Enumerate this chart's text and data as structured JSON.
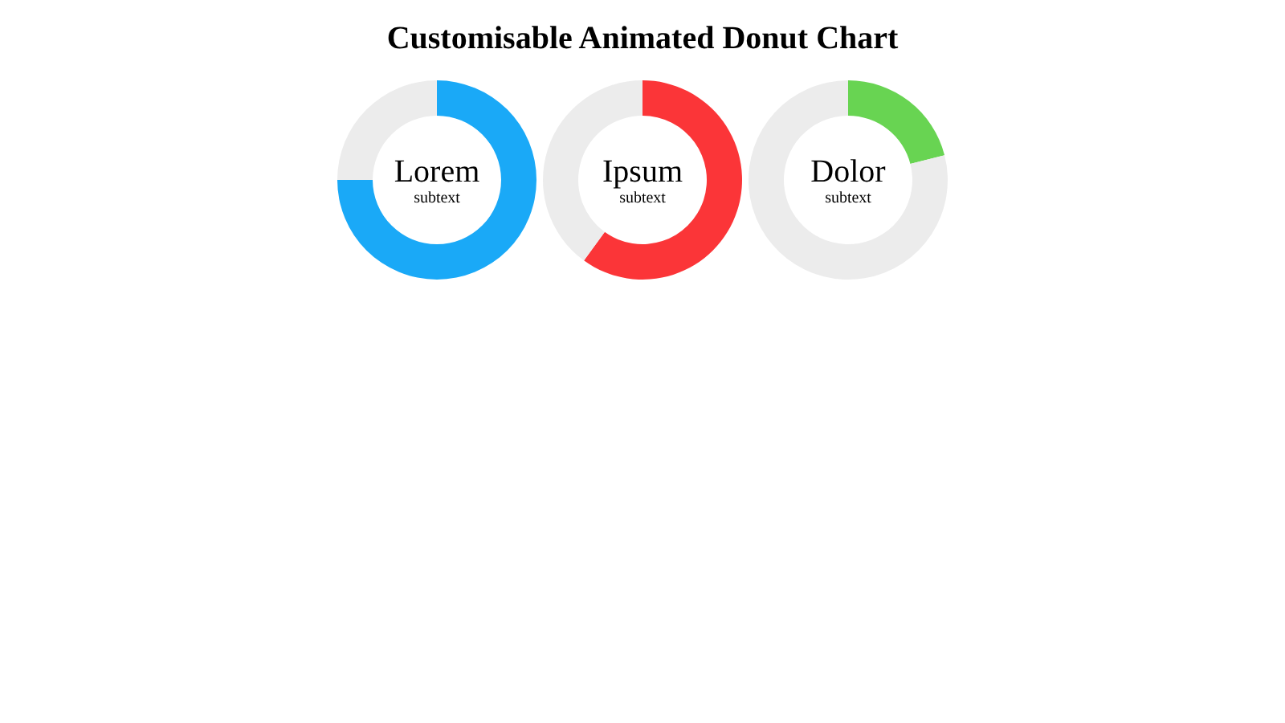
{
  "chart_data": [
    {
      "type": "other",
      "title": "Customisable Animated Donut Chart"
    },
    {
      "type": "donut",
      "title": "Lorem",
      "subtitle": "subtext",
      "categories": [
        null,
        null
      ],
      "values": [
        75,
        25
      ],
      "colors": [
        "#1aa9f7",
        "#ececec"
      ]
    },
    {
      "type": "donut",
      "title": "Ipsum",
      "subtitle": "subtext",
      "categories": [
        null,
        null
      ],
      "values": [
        60,
        40
      ],
      "colors": [
        "#fb3538",
        "#ececec"
      ]
    },
    {
      "type": "donut",
      "title": "Dolor",
      "subtitle": "subtext",
      "categories": [
        null,
        null
      ],
      "values": [
        21,
        79
      ],
      "colors": [
        "#68d452",
        "#ececec"
      ]
    }
  ]
}
